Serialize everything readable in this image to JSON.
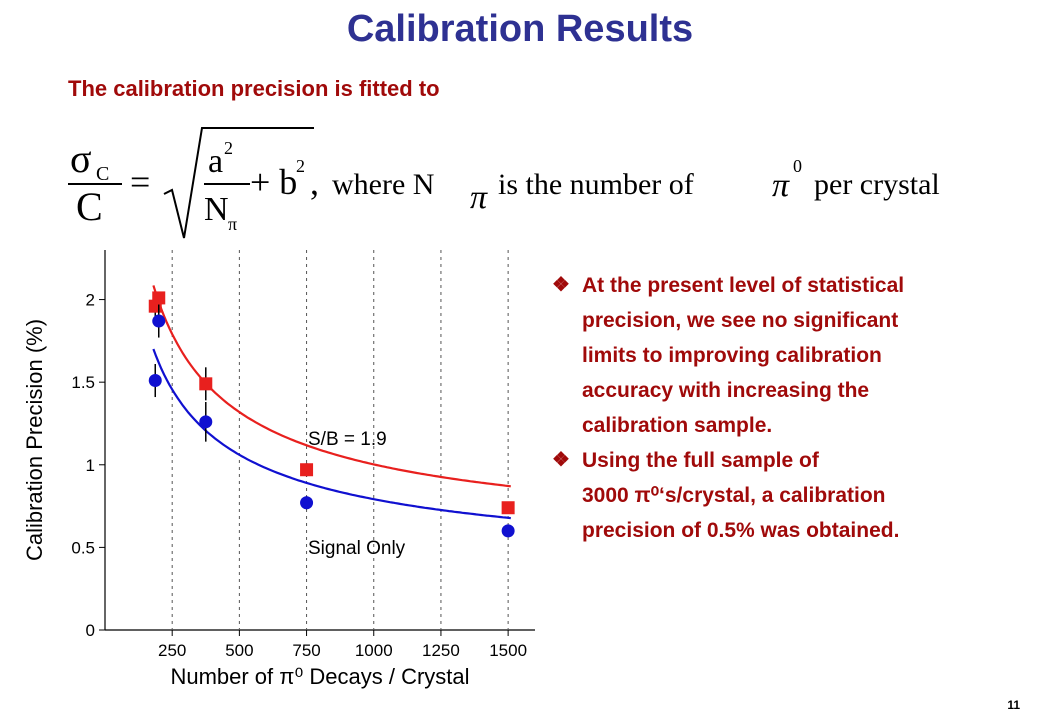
{
  "slide": {
    "title": "Calibration Results",
    "subtitle": "The calibration precision is fitted to",
    "formula": {
      "lhs_top": "σ",
      "lhs_top_sub": "C",
      "lhs_bottom": "C",
      "eq": "=",
      "a_sq": "a",
      "exp2": "2",
      "den_n": "N",
      "den_sub": "π",
      "plus_b": "+ b",
      "comma": ",",
      "where": "where N",
      "pi1": "π",
      "is_number_of": "is the number of",
      "pi2": "π",
      "exp0": "0",
      "per_crystal": "per crystal"
    },
    "bullets": [
      {
        "lines": [
          "At the present level of statistical",
          "precision, we see no significant",
          "limits to improving calibration",
          "accuracy with increasing the",
          "calibration sample."
        ]
      },
      {
        "lines": [
          "Using the full sample of",
          "3000 π⁰‘s/crystal, a calibration",
          "precision of 0.5% was obtained."
        ]
      }
    ],
    "page_number": "11",
    "colors": {
      "title": "#2e3192",
      "text": "#a00a0a"
    }
  },
  "chart_data": {
    "type": "scatter",
    "title": "",
    "xlabel": "Number of π⁰ Decays / Crystal",
    "ylabel": "Calibration Precision (%)",
    "xlim": [
      0,
      1600
    ],
    "ylim": [
      0,
      2.3
    ],
    "x_ticks": [
      250,
      500,
      750,
      1000,
      1250,
      1500
    ],
    "x_tick_labels": [
      "250",
      "500",
      "750",
      "1000",
      "1250",
      "1500"
    ],
    "y_ticks": [
      0,
      0.5,
      1,
      1.5,
      2
    ],
    "y_tick_labels": [
      "0",
      "0.5",
      "1",
      "1.5",
      "2"
    ],
    "grid": "vertical",
    "series": [
      {
        "name": "S/B = 1.9",
        "color": "#e8201e",
        "marker": "square",
        "x": [
          187,
          375,
          750,
          1500
        ],
        "y": [
          1.96,
          1.49,
          0.97,
          0.74
        ],
        "yerr": [
          0.08,
          0.1,
          0.04,
          0.03
        ],
        "x_extra": [
          200
        ],
        "y_extra": [
          2.01
        ]
      },
      {
        "name": "Signal Only",
        "color": "#1010d0",
        "marker": "circle",
        "x": [
          187,
          200,
          375,
          750,
          1500
        ],
        "y": [
          1.51,
          1.87,
          1.26,
          0.77,
          0.6
        ],
        "yerr": [
          0.1,
          0.1,
          0.12,
          0.04,
          0.03
        ]
      }
    ],
    "fits": [
      {
        "series": "S/B = 1.9",
        "color": "#e8201e",
        "a": 27.1,
        "b": 0.52
      },
      {
        "series": "Signal Only",
        "color": "#1010d0",
        "a": 22.3,
        "b": 0.36
      }
    ]
  }
}
